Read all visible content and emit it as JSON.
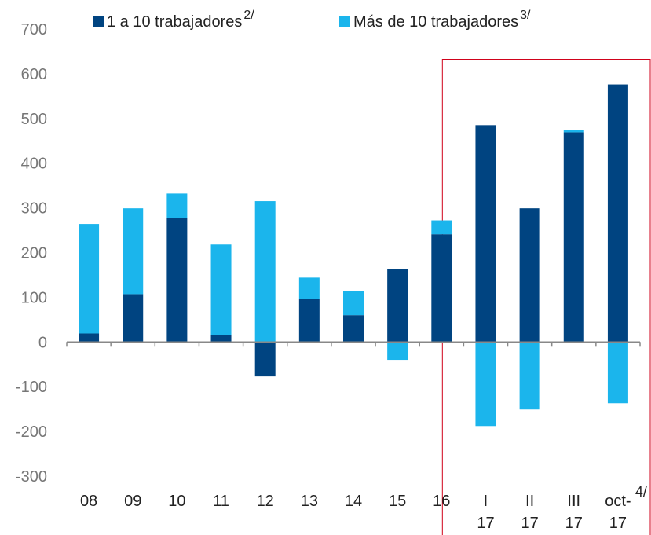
{
  "chart_data": {
    "type": "bar",
    "stacked": true,
    "categories": [
      "08",
      "09",
      "10",
      "11",
      "12",
      "13",
      "14",
      "15",
      "16",
      "I\n17",
      "II\n17",
      "III\n17",
      "oct-\n17"
    ],
    "category_notes": [
      null,
      null,
      null,
      null,
      null,
      null,
      null,
      null,
      null,
      null,
      null,
      null,
      "4/"
    ],
    "series": [
      {
        "name": "1 a 10 trabajadores",
        "note": "2/",
        "color": "#004481",
        "values": [
          19,
          107,
          278,
          16,
          -77,
          97,
          60,
          163,
          241,
          485,
          299,
          469,
          576
        ]
      },
      {
        "name": "Más de 10 trabajadores",
        "note": "3/",
        "color": "#1bb5ec",
        "values": [
          245,
          192,
          54,
          202,
          315,
          47,
          54,
          -40,
          31,
          -188,
          -151,
          5,
          -137
        ]
      }
    ],
    "ylim": [
      -300,
      700
    ],
    "yticks": [
      -300,
      -200,
      -100,
      0,
      100,
      200,
      300,
      400,
      500,
      600,
      700
    ],
    "grid": false
  }
}
